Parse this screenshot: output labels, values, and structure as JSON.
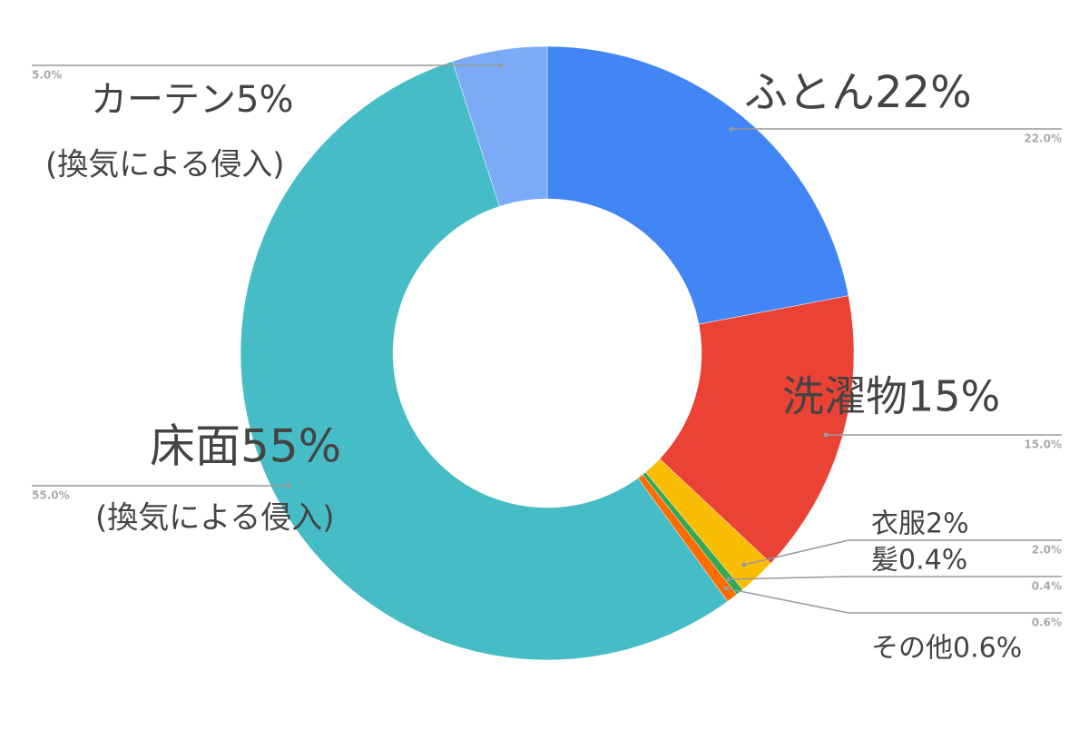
{
  "chart_data": {
    "type": "donut",
    "categories": [
      "ふとん22%",
      "洗濯物15%",
      "衣服2%",
      "髪0.4%",
      "その他0.6%",
      "床面55%",
      "カーテン5%"
    ],
    "sublabels": [
      null,
      null,
      null,
      null,
      null,
      "(換気による侵入)",
      "(換気による侵入)"
    ],
    "values": [
      22,
      15,
      2,
      0.4,
      0.6,
      55,
      5
    ],
    "value_labels": [
      "22.0%",
      "15.0%",
      "2.0%",
      "0.4%",
      "0.6%",
      "55.0%",
      "5.0%"
    ],
    "colors": [
      "#4285f4",
      "#ea4335",
      "#fbbc04",
      "#34a853",
      "#ff6d01",
      "#46bdc6",
      "#7baaf7"
    ]
  }
}
